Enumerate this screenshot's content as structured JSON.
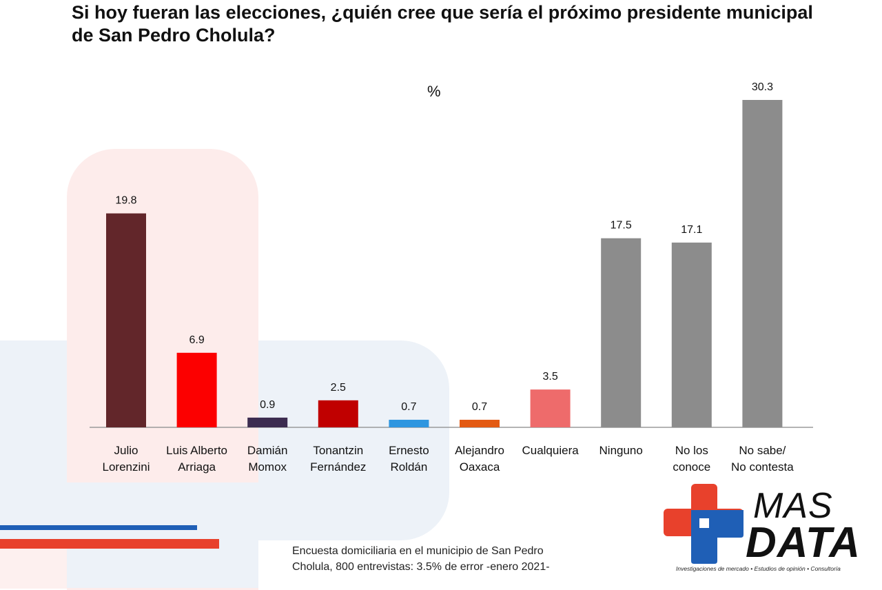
{
  "title": "Si hoy fueran las elecciones, ¿quién cree que sería el próximo presidente municipal de San Pedro Cholula?",
  "unit_label": "%",
  "footnote_line1": "Encuesta domiciliaria en el municipio de San Pedro",
  "footnote_line2": "Cholula, 800 entrevistas: 3.5% de error -enero 2021-",
  "logo": {
    "word1": "MAS",
    "word2": "DATA",
    "tagline": "Investigaciones de mercado • Estudios de opinión • Consultoría"
  },
  "colors": {
    "stripe_blue": "#1f5fb6",
    "stripe_red": "#e8412c",
    "axis": "#9a9a9a"
  },
  "chart_data": {
    "type": "bar",
    "title": "Si hoy fueran las elecciones, ¿quién cree que sería el próximo presidente municipal de San Pedro Cholula?",
    "ylabel": "%",
    "xlabel": "",
    "ylim": [
      0,
      30.3
    ],
    "categories": [
      [
        "Julio",
        "Lorenzini"
      ],
      [
        "Luis Alberto",
        "Arriaga"
      ],
      [
        "Damián",
        "Momox"
      ],
      [
        "Tonantzin",
        "Fernández"
      ],
      [
        "Ernesto",
        "Roldán"
      ],
      [
        "Alejandro",
        "Oaxaca"
      ],
      [
        "Cualquiera"
      ],
      [
        "Ninguno"
      ],
      [
        "No los",
        "conoce"
      ],
      [
        "No sabe/",
        "No contesta"
      ]
    ],
    "values": [
      19.8,
      6.9,
      0.9,
      2.5,
      0.7,
      0.7,
      3.5,
      17.5,
      17.1,
      30.3
    ],
    "labels": [
      "19.8",
      "6.9",
      "0.9",
      "2.5",
      "0.7",
      "0.7",
      "3.5",
      "17.5",
      "17.1",
      "30.3"
    ],
    "bar_colors": [
      "#62262a",
      "#fc0000",
      "#3c2c50",
      "#c00000",
      "#2e96e0",
      "#e35a12",
      "#ee6b6b",
      "#8c8c8c",
      "#8c8c8c",
      "#8c8c8c"
    ]
  }
}
